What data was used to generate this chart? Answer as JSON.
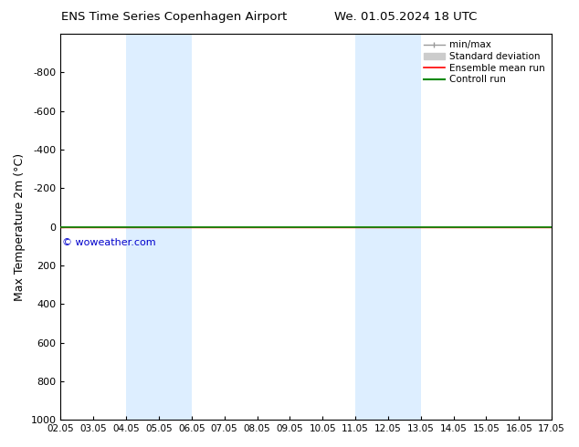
{
  "title_left": "ENS Time Series Copenhagen Airport",
  "title_right": "We. 01.05.2024 18 UTC",
  "ylabel": "Max Temperature 2m (°C)",
  "xlim": [
    0,
    15
  ],
  "ylim": [
    1000,
    -1000
  ],
  "yticks": [
    -800,
    -600,
    -400,
    -200,
    0,
    200,
    400,
    600,
    800,
    1000
  ],
  "xtick_labels": [
    "02.05",
    "03.05",
    "04.05",
    "05.05",
    "06.05",
    "07.05",
    "08.05",
    "09.05",
    "10.05",
    "11.05",
    "12.05",
    "13.05",
    "14.05",
    "15.05",
    "16.05",
    "17.05"
  ],
  "shaded_regions": [
    [
      2.0,
      3.0
    ],
    [
      3.0,
      4.0
    ],
    [
      9.0,
      10.0
    ],
    [
      10.0,
      11.0
    ]
  ],
  "shade_color": "#ddeeff",
  "line_y": 0,
  "control_run_color": "#008800",
  "ensemble_mean_color": "#ff0000",
  "watermark_text": "© woweather.com",
  "watermark_color": "#0000cc",
  "background_color": "#ffffff",
  "legend_items": [
    {
      "label": "min/max",
      "color": "#999999",
      "lw": 1.0
    },
    {
      "label": "Standard deviation",
      "color": "#cccccc",
      "lw": 6
    },
    {
      "label": "Ensemble mean run",
      "color": "#ff0000",
      "lw": 1.2
    },
    {
      "label": "Controll run",
      "color": "#008800",
      "lw": 1.5
    }
  ]
}
